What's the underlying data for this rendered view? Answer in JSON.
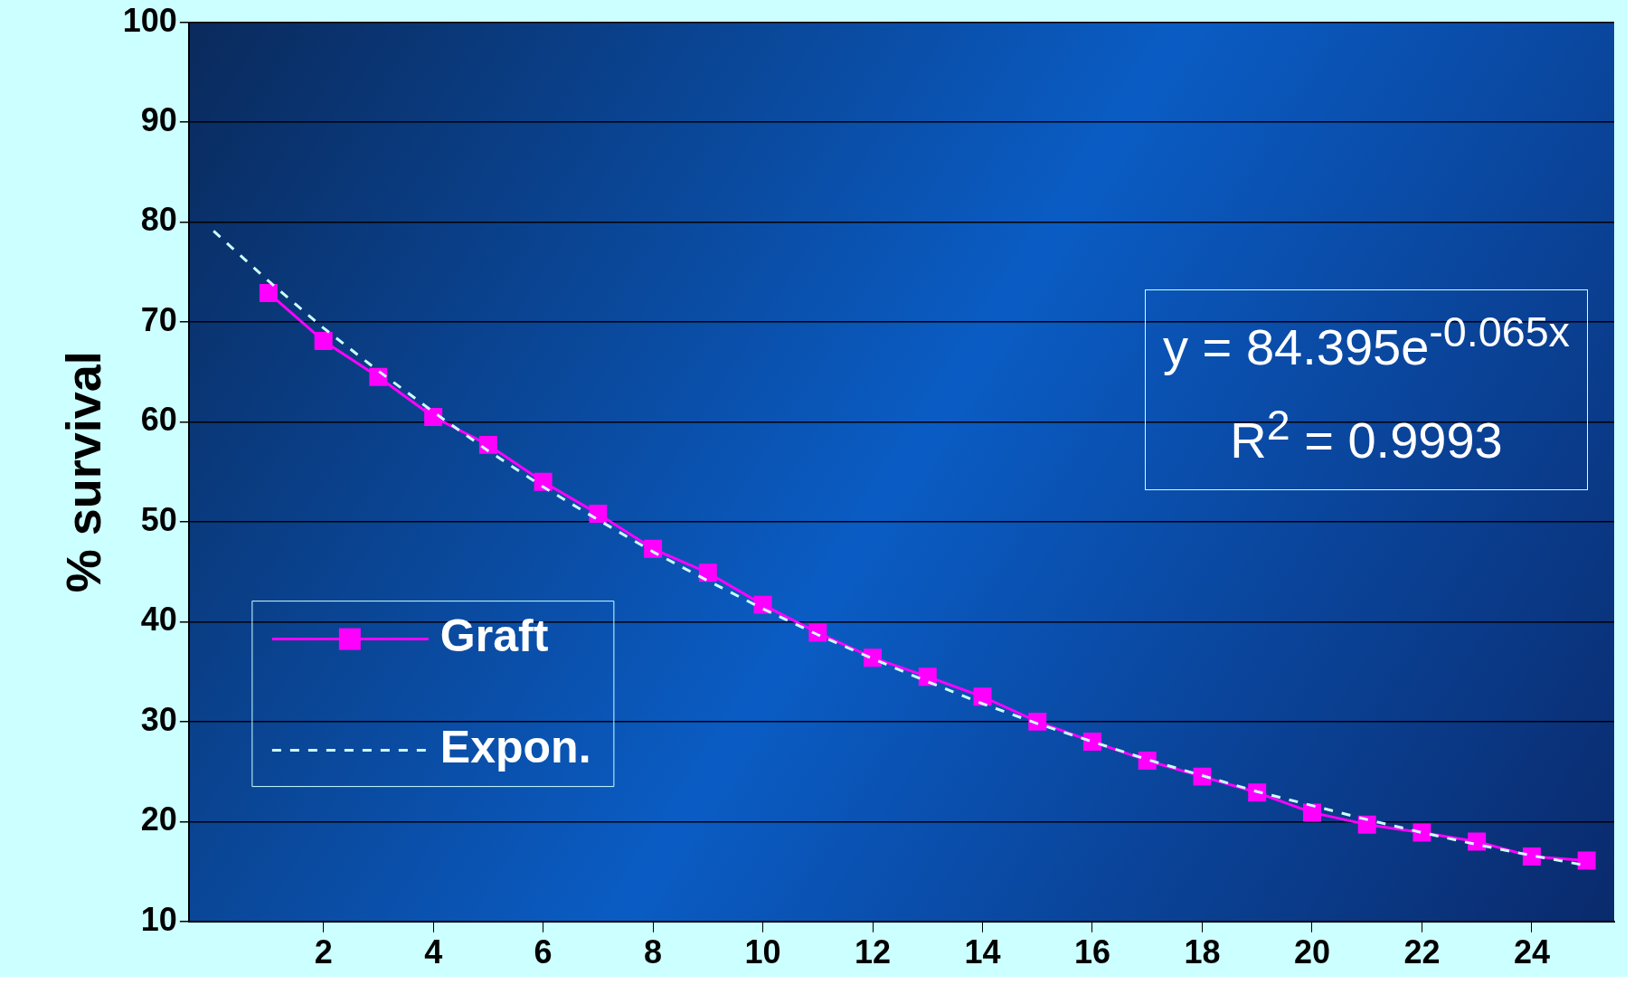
{
  "chart_data": {
    "type": "line",
    "ylabel": "% survival",
    "xlim": [
      -0.45,
      25.5
    ],
    "xticks": [
      2,
      4,
      6,
      8,
      10,
      12,
      14,
      16,
      18,
      20,
      22,
      24
    ],
    "ylim": [
      10,
      100
    ],
    "yticks": [
      10,
      20,
      30,
      40,
      50,
      60,
      70,
      80,
      90,
      100
    ],
    "grid": "y",
    "legend": "left",
    "annotations": [
      "y = 84.395e$^{-0.065x}$",
      "R$^{2}$ = 0.9993"
    ],
    "series": [
      {
        "name": "Graft",
        "color": "#ff00ff",
        "marker": "square",
        "line_style": "solid",
        "x": [
          1,
          2,
          3,
          4,
          5,
          6,
          7,
          8,
          9,
          10,
          11,
          12,
          13,
          14,
          15,
          16,
          17,
          18,
          19,
          20,
          21,
          22,
          23,
          24,
          25
        ],
        "values": [
          72.9,
          68.1,
          64.5,
          60.5,
          57.7,
          54.0,
          50.8,
          47.3,
          44.9,
          41.7,
          38.9,
          36.4,
          34.5,
          32.5,
          30.0,
          28.0,
          26.1,
          24.5,
          22.9,
          20.9,
          19.7,
          18.9,
          18.0,
          16.5,
          16.1
        ]
      },
      {
        "name": "Expon.",
        "color": "#ccffff",
        "marker": "none",
        "line_style": "dashed",
        "x": [
          0,
          1,
          2,
          3,
          4,
          5,
          6,
          7,
          8,
          9,
          10,
          11,
          12,
          13,
          14,
          15,
          16,
          17,
          18,
          19,
          20,
          21,
          22,
          23,
          24,
          25
        ],
        "values": [
          79.1,
          74.1,
          69.4,
          65.1,
          61.0,
          57.1,
          53.5,
          50.2,
          47.0,
          44.1,
          41.3,
          38.7,
          36.3,
          34.0,
          31.8,
          29.8,
          28.0,
          26.2,
          24.6,
          23.0,
          21.6,
          20.2,
          18.9,
          17.7,
          16.6,
          15.6
        ]
      }
    ]
  }
}
